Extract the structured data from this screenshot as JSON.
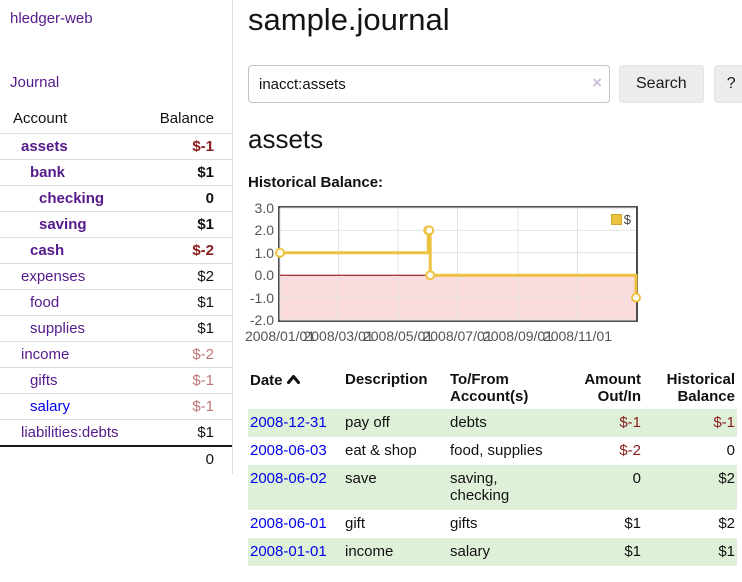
{
  "sidebar": {
    "brand": "hledger-web",
    "nav": {
      "journal": "Journal"
    },
    "accounts_table": {
      "headers": {
        "account": "Account",
        "balance": "Balance"
      },
      "rows": [
        {
          "name": "assets",
          "balance": "$-1"
        },
        {
          "name": "bank",
          "balance": "$1"
        },
        {
          "name": "checking",
          "balance": "0"
        },
        {
          "name": "saving",
          "balance": "$1"
        },
        {
          "name": "cash",
          "balance": "$-2"
        },
        {
          "name": "expenses",
          "balance": "$2"
        },
        {
          "name": "food",
          "balance": "$1"
        },
        {
          "name": "supplies",
          "balance": "$1"
        },
        {
          "name": "income",
          "balance": "$-2"
        },
        {
          "name": "gifts",
          "balance": "$-1"
        },
        {
          "name": "salary",
          "balance": "$-1"
        },
        {
          "name": "liabilities:debts",
          "balance": "$1"
        }
      ],
      "total": "0"
    }
  },
  "header": {
    "title": "sample.journal"
  },
  "search": {
    "value": "inacct:assets",
    "clear_icon": "×",
    "button_label": "Search",
    "help_label": "?"
  },
  "account_view": {
    "heading": "assets",
    "chart_title": "Historical Balance:"
  },
  "chart_data": {
    "type": "line",
    "style": "steps",
    "title": "Historical Balance",
    "series": [
      {
        "name": "$",
        "points": [
          {
            "x": "2008-01-01",
            "y": 1
          },
          {
            "x": "2008-06-01",
            "y": 2
          },
          {
            "x": "2008-06-02",
            "y": 2
          },
          {
            "x": "2008-06-03",
            "y": 0
          },
          {
            "x": "2008-12-31",
            "y": -1
          }
        ]
      }
    ],
    "xmin": "2008-01-01",
    "xmax": "2008-12-31",
    "ylim": [
      -2,
      3
    ],
    "yticks": [
      3,
      2,
      1,
      0,
      -1,
      -2
    ],
    "ytick_labels": [
      "3.0",
      "2.0",
      "1.0",
      "0.0",
      "-1.0",
      "-2.0"
    ],
    "xticks": [
      "2008-01-01",
      "2008-03-01",
      "2008-05-01",
      "2008-07-01",
      "2008-09-01",
      "2008-11-01"
    ],
    "xtick_labels": [
      "2008/01/01",
      "2008/03/01",
      "2008/05/01",
      "2008/07/01",
      "2008/09/01",
      "2008/11/01"
    ],
    "legend": {
      "label": "$",
      "position": "top-right"
    },
    "grid": true,
    "colors": {
      "series": "#edc240",
      "marker_fill": "#ffffff",
      "negative_region": "#fbdcdc",
      "zero_line": "#8b0000",
      "gridline": "#e2e2e2",
      "border": "#4c4c4c"
    }
  },
  "transactions": {
    "headers": {
      "date": "Date",
      "sort_indicator": "ascending",
      "description": "Description",
      "accounts": "To/From Account(s)",
      "amount": "Amount Out/In",
      "balance": "Historical Balance"
    },
    "rows": [
      {
        "date": "2008-12-31",
        "description": "pay off",
        "accounts": "debts",
        "amount": "$-1",
        "balance": "$-1"
      },
      {
        "date": "2008-06-03",
        "description": "eat & shop",
        "accounts": "food, supplies",
        "amount": "$-2",
        "balance": "0"
      },
      {
        "date": "2008-06-02",
        "description": "save",
        "accounts": "saving,\nchecking",
        "amount": "0",
        "balance": "$2"
      },
      {
        "date": "2008-06-01",
        "description": "gift",
        "accounts": "gifts",
        "amount": "$1",
        "balance": "$2"
      },
      {
        "date": "2008-01-01",
        "description": "income",
        "accounts": "salary",
        "amount": "$1",
        "balance": "$1"
      }
    ]
  }
}
